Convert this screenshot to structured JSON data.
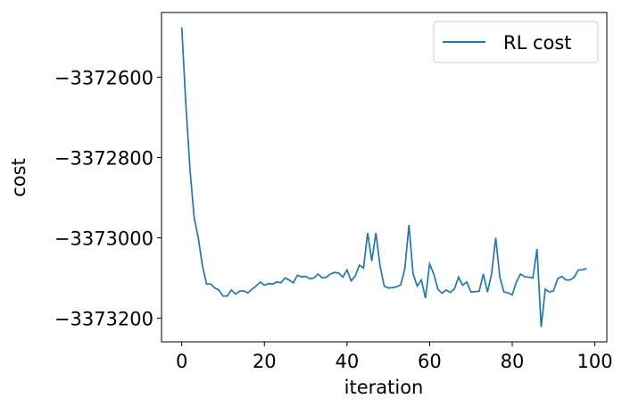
{
  "chart_data": {
    "type": "line",
    "x_label": "iteration",
    "y_label": "cost",
    "x": [
      0,
      1,
      2,
      3,
      4,
      5,
      6,
      7,
      8,
      9,
      10,
      11,
      12,
      13,
      14,
      15,
      16,
      17,
      18,
      19,
      20,
      21,
      22,
      23,
      24,
      25,
      26,
      27,
      28,
      29,
      30,
      31,
      32,
      33,
      34,
      35,
      36,
      37,
      38,
      39,
      40,
      41,
      42,
      43,
      44,
      45,
      46,
      47,
      48,
      49,
      50,
      51,
      52,
      53,
      54,
      55,
      56,
      57,
      58,
      59,
      60,
      61,
      62,
      63,
      64,
      65,
      66,
      67,
      68,
      69,
      70,
      71,
      72,
      73,
      74,
      75,
      76,
      77,
      78,
      79,
      80,
      81,
      82,
      83,
      84,
      85,
      86,
      87,
      88,
      89,
      90,
      91,
      92,
      93,
      94,
      95,
      96,
      97,
      98
    ],
    "series": [
      {
        "name": "RL cost",
        "color": "#1f77b4",
        "values": [
          -3372476,
          -3372670,
          -3372830,
          -3372950,
          -3373000,
          -3373070,
          -3373115,
          -3373115,
          -3373125,
          -3373130,
          -3373145,
          -3373145,
          -3373130,
          -3373140,
          -3373133,
          -3373132,
          -3373137,
          -3373128,
          -3373120,
          -3373110,
          -3373118,
          -3373114,
          -3373115,
          -3373110,
          -3373112,
          -3373100,
          -3373105,
          -3373112,
          -3373093,
          -3373097,
          -3373096,
          -3373102,
          -3373100,
          -3373090,
          -3373100,
          -3373098,
          -3373090,
          -3373086,
          -3373088,
          -3373098,
          -3373080,
          -3373107,
          -3373095,
          -3373068,
          -3373075,
          -3372988,
          -3373058,
          -3372988,
          -3373070,
          -3373120,
          -3373125,
          -3373124,
          -3373122,
          -3373117,
          -3373077,
          -3372968,
          -3373090,
          -3373120,
          -3373105,
          -3373150,
          -3373065,
          -3373090,
          -3373128,
          -3373138,
          -3373130,
          -3373136,
          -3373127,
          -3373098,
          -3373118,
          -3373110,
          -3373135,
          -3373134,
          -3373133,
          -3373090,
          -3373135,
          -3373090,
          -3373000,
          -3373098,
          -3373135,
          -3373137,
          -3373142,
          -3373110,
          -3373090,
          -3373097,
          -3373098,
          -3373100,
          -3373028,
          -3373222,
          -3373128,
          -3373135,
          -3373132,
          -3373102,
          -3373096,
          -3373105,
          -3373105,
          -3373098,
          -3373080,
          -3373080,
          -3373076
        ]
      }
    ],
    "xlim": [
      -4.9,
      102.9
    ],
    "xticks": [
      0,
      20,
      40,
      60,
      80,
      100
    ],
    "ylim": [
      -3373259,
      -3372439
    ],
    "yticks": [
      {
        "value": -3373200,
        "label": "−3373200"
      },
      {
        "value": -3373000,
        "label": "−3373000"
      },
      {
        "value": -3372800,
        "label": "−3372800"
      },
      {
        "value": -3372600,
        "label": "−3372600"
      }
    ],
    "legend": "upper right",
    "grid": false
  }
}
